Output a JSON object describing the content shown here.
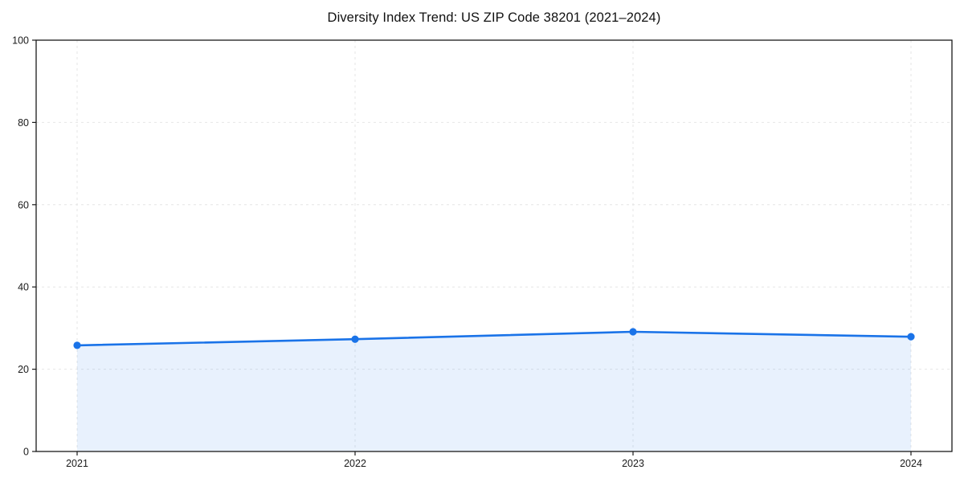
{
  "chart_data": {
    "type": "area",
    "title": "Diversity Index Trend: US ZIP Code 38201 (2021–2024)",
    "categories": [
      "2021",
      "2022",
      "2023",
      "2024"
    ],
    "series": [
      {
        "name": "Diversity Index",
        "values": [
          25.8,
          27.3,
          29.1,
          27.9
        ]
      }
    ],
    "xlabel": "",
    "ylabel": "",
    "ylim": [
      0,
      100
    ],
    "yticks": [
      0,
      20,
      40,
      60,
      80,
      100
    ],
    "grid": true,
    "grid_style": "dashed",
    "grid_axes": "both",
    "legend": false,
    "marker": "circle",
    "colors": {
      "line": "#1a73e8",
      "marker": "#1a73e8",
      "fill": "rgba(26,115,232,0.10)",
      "gridline": "#e6e6e6",
      "spine": "#1a1a1a",
      "tick_text": "#1a1a1a",
      "title_text": "#111111",
      "background": "#ffffff"
    }
  }
}
